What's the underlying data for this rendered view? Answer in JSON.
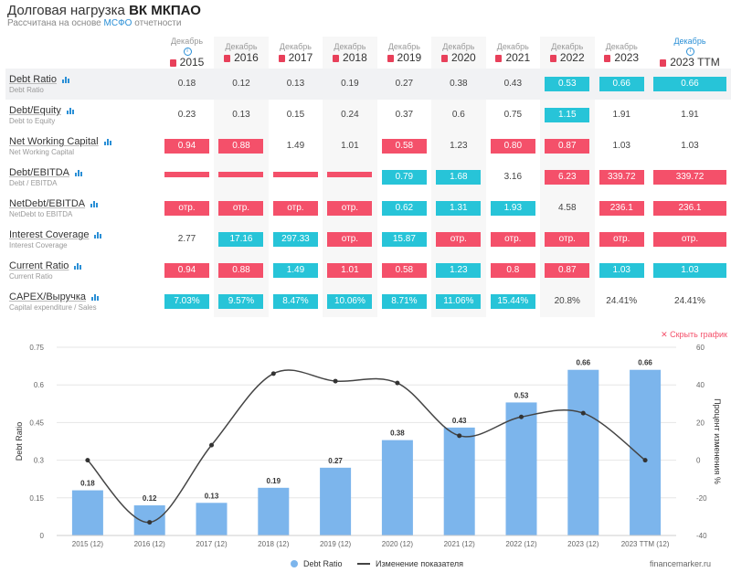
{
  "header": {
    "title_prefix": "Долговая нагрузка",
    "title_company": "ВК МКПАО",
    "subtitle_prefix": "Рассчитана на основе",
    "subtitle_link": "МСФО",
    "subtitle_suffix": "отчетности"
  },
  "table": {
    "columns": [
      {
        "month": "Декабрь",
        "year": "2015",
        "info": true
      },
      {
        "month": "Декабрь",
        "year": "2016"
      },
      {
        "month": "Декабрь",
        "year": "2017"
      },
      {
        "month": "Декабрь",
        "year": "2018"
      },
      {
        "month": "Декабрь",
        "year": "2019"
      },
      {
        "month": "Декабрь",
        "year": "2020"
      },
      {
        "month": "Декабрь",
        "year": "2021"
      },
      {
        "month": "Декабрь",
        "year": "2022"
      },
      {
        "month": "Декабрь",
        "year": "2023"
      },
      {
        "month": "Декабрь",
        "year": "2023 TTM",
        "info": true,
        "blue": true
      }
    ],
    "rows": [
      {
        "name": "Debt Ratio",
        "sub": "Debt Ratio",
        "cells": [
          {
            "v": "0.18",
            "c": ""
          },
          {
            "v": "0.12",
            "c": ""
          },
          {
            "v": "0.13",
            "c": ""
          },
          {
            "v": "0.19",
            "c": ""
          },
          {
            "v": "0.27",
            "c": ""
          },
          {
            "v": "0.38",
            "c": ""
          },
          {
            "v": "0.43",
            "c": ""
          },
          {
            "v": "0.53",
            "c": "cyan"
          },
          {
            "v": "0.66",
            "c": "cyan"
          },
          {
            "v": "0.66",
            "c": "cyan"
          }
        ]
      },
      {
        "name": "Debt/Equity",
        "sub": "Debt to Equity",
        "cells": [
          {
            "v": "0.23",
            "c": ""
          },
          {
            "v": "0.13",
            "c": ""
          },
          {
            "v": "0.15",
            "c": ""
          },
          {
            "v": "0.24",
            "c": ""
          },
          {
            "v": "0.37",
            "c": ""
          },
          {
            "v": "0.6",
            "c": ""
          },
          {
            "v": "0.75",
            "c": ""
          },
          {
            "v": "1.15",
            "c": "cyan"
          },
          {
            "v": "1.91",
            "c": ""
          },
          {
            "v": "1.91",
            "c": ""
          }
        ]
      },
      {
        "name": "Net Working Capital",
        "sub": "Net Working Capital",
        "cells": [
          {
            "v": "0.94",
            "c": "red"
          },
          {
            "v": "0.88",
            "c": "red"
          },
          {
            "v": "1.49",
            "c": ""
          },
          {
            "v": "1.01",
            "c": ""
          },
          {
            "v": "0.58",
            "c": "red"
          },
          {
            "v": "1.23",
            "c": ""
          },
          {
            "v": "0.80",
            "c": "red"
          },
          {
            "v": "0.87",
            "c": "red"
          },
          {
            "v": "1.03",
            "c": ""
          },
          {
            "v": "1.03",
            "c": ""
          }
        ]
      },
      {
        "name": "Debt/EBITDA",
        "sub": "Debt / EBITDA",
        "cells": [
          {
            "v": "",
            "c": "red thin"
          },
          {
            "v": "",
            "c": "red thin"
          },
          {
            "v": "",
            "c": "red thin"
          },
          {
            "v": "",
            "c": "red thin"
          },
          {
            "v": "0.79",
            "c": "cyan"
          },
          {
            "v": "1.68",
            "c": "cyan"
          },
          {
            "v": "3.16",
            "c": ""
          },
          {
            "v": "6.23",
            "c": "red"
          },
          {
            "v": "339.72",
            "c": "red"
          },
          {
            "v": "339.72",
            "c": "red"
          }
        ]
      },
      {
        "name": "NetDebt/EBITDA",
        "sub": "NetDebt to EBITDA",
        "cells": [
          {
            "v": "отр.",
            "c": "red"
          },
          {
            "v": "отр.",
            "c": "red"
          },
          {
            "v": "отр.",
            "c": "red"
          },
          {
            "v": "отр.",
            "c": "red"
          },
          {
            "v": "0.62",
            "c": "cyan"
          },
          {
            "v": "1.31",
            "c": "cyan"
          },
          {
            "v": "1.93",
            "c": "cyan"
          },
          {
            "v": "4.58",
            "c": ""
          },
          {
            "v": "236.1",
            "c": "red"
          },
          {
            "v": "236.1",
            "c": "red"
          }
        ]
      },
      {
        "name": "Interest Coverage",
        "sub": "Interest Coverage",
        "cells": [
          {
            "v": "2.77",
            "c": ""
          },
          {
            "v": "17.16",
            "c": "cyan"
          },
          {
            "v": "297.33",
            "c": "cyan"
          },
          {
            "v": "отр.",
            "c": "red"
          },
          {
            "v": "15.87",
            "c": "cyan"
          },
          {
            "v": "отр.",
            "c": "red"
          },
          {
            "v": "отр.",
            "c": "red"
          },
          {
            "v": "отр.",
            "c": "red"
          },
          {
            "v": "отр.",
            "c": "red"
          },
          {
            "v": "отр.",
            "c": "red"
          }
        ]
      },
      {
        "name": "Current Ratio",
        "sub": "Current Ratio",
        "cells": [
          {
            "v": "0.94",
            "c": "red"
          },
          {
            "v": "0.88",
            "c": "red"
          },
          {
            "v": "1.49",
            "c": "cyan"
          },
          {
            "v": "1.01",
            "c": "red"
          },
          {
            "v": "0.58",
            "c": "red"
          },
          {
            "v": "1.23",
            "c": "cyan"
          },
          {
            "v": "0.8",
            "c": "red"
          },
          {
            "v": "0.87",
            "c": "red"
          },
          {
            "v": "1.03",
            "c": "cyan"
          },
          {
            "v": "1.03",
            "c": "cyan"
          }
        ]
      },
      {
        "name": "CAPEX/Выручка",
        "sub": "Capital expenditure / Sales",
        "cells": [
          {
            "v": "7.03%",
            "c": "cyan"
          },
          {
            "v": "9.57%",
            "c": "cyan"
          },
          {
            "v": "8.47%",
            "c": "cyan"
          },
          {
            "v": "10.06%",
            "c": "cyan"
          },
          {
            "v": "8.71%",
            "c": "cyan"
          },
          {
            "v": "11.06%",
            "c": "cyan"
          },
          {
            "v": "15.44%",
            "c": "cyan"
          },
          {
            "v": "20.8%",
            "c": ""
          },
          {
            "v": "24.41%",
            "c": ""
          },
          {
            "v": "24.41%",
            "c": ""
          }
        ]
      }
    ]
  },
  "hide_chart_label": "✕ Скрыть график",
  "legend": {
    "bars": "Debt Ratio",
    "line": "Изменение показателя"
  },
  "watermark": "financemarker.ru",
  "colors": {
    "bar": "#7cb5ec",
    "red": "#f4506a",
    "cyan": "#27c4d8",
    "line": "#444444"
  },
  "chart_data": {
    "type": "bar",
    "categories": [
      "2015 (12)",
      "2016 (12)",
      "2017 (12)",
      "2018 (12)",
      "2019 (12)",
      "2020 (12)",
      "2021 (12)",
      "2022 (12)",
      "2023 (12)",
      "2023 TTM (12)"
    ],
    "series": [
      {
        "name": "Debt Ratio",
        "type": "bar",
        "axis": "left",
        "values": [
          0.18,
          0.12,
          0.13,
          0.19,
          0.27,
          0.38,
          0.43,
          0.53,
          0.66,
          0.66
        ]
      },
      {
        "name": "Изменение показателя",
        "type": "line",
        "axis": "right",
        "values": [
          0,
          -33,
          8,
          46,
          42,
          41,
          13,
          23,
          25,
          0
        ]
      }
    ],
    "ylabel": "Debt Ratio",
    "y2label": "Процент изменения %",
    "ylim": [
      0,
      0.75
    ],
    "yticks": [
      "0",
      "0.15",
      "0.3",
      "0.45",
      "0.6",
      "0.75"
    ],
    "y2lim": [
      -40,
      60
    ],
    "y2ticks": [
      "-40",
      "-20",
      "0",
      "20",
      "40",
      "60"
    ],
    "legend": "bottom"
  }
}
